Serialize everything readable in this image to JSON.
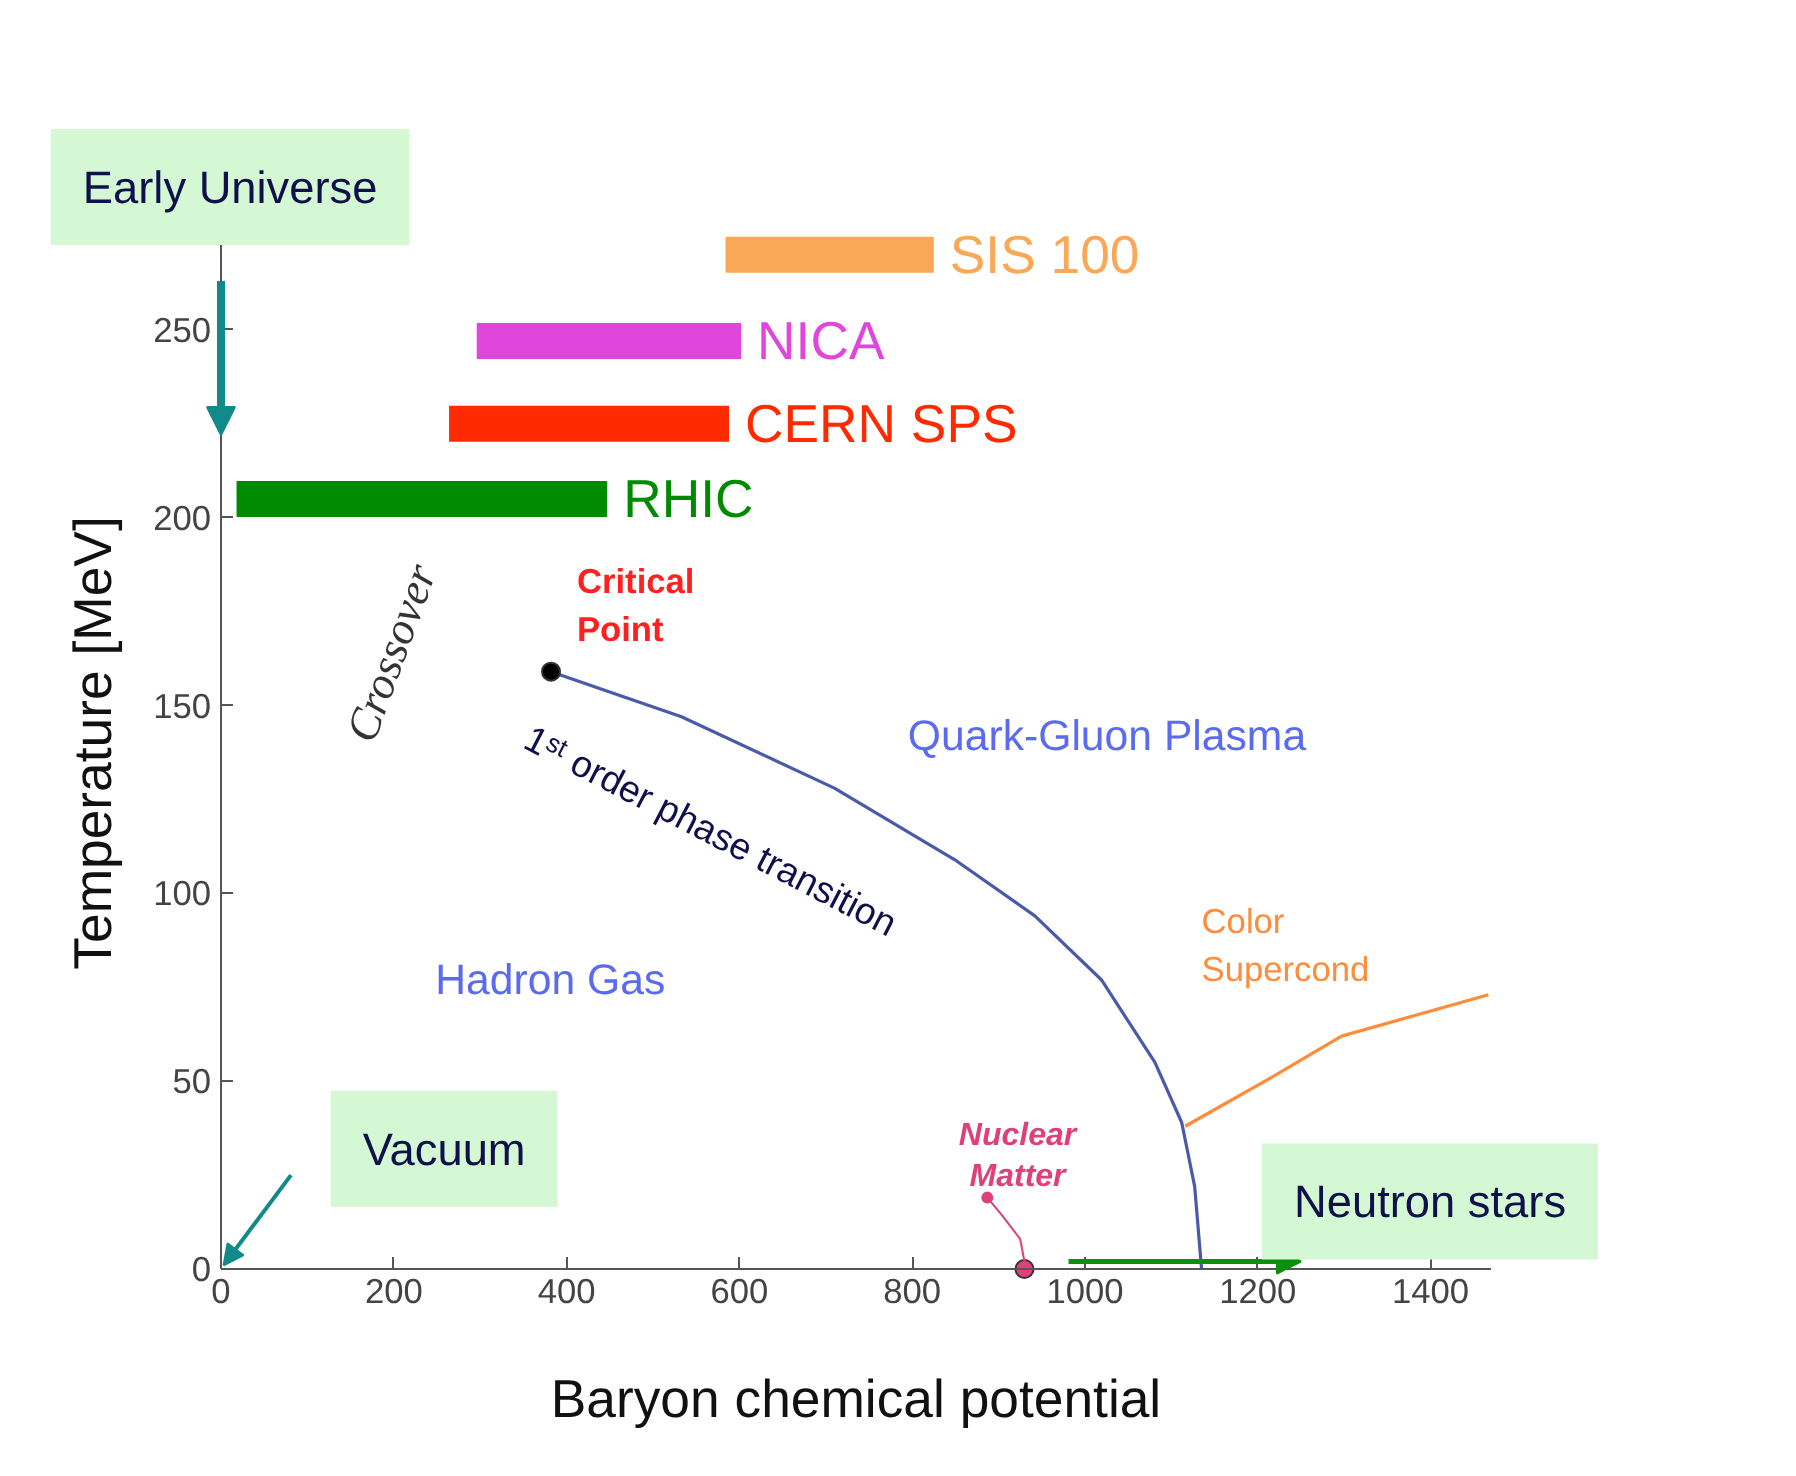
{
  "chart_data": {
    "type": "line",
    "xlabel": "Baryon chemical potential",
    "ylabel": "Temperature [MeV]",
    "xlim": [
      0,
      1470
    ],
    "ylim": [
      0,
      280
    ],
    "xticks": [
      0,
      200,
      400,
      600,
      800,
      1000,
      1200,
      1400
    ],
    "yticks": [
      0,
      50,
      100,
      150,
      200,
      250
    ],
    "series": [
      {
        "name": "SIS 100",
        "color": "#f9a857",
        "x": [
          584,
          825
        ],
        "values": [
          270,
          270
        ]
      },
      {
        "name": "NICA",
        "color": "#e046dc",
        "x": [
          296,
          602
        ],
        "values": [
          247,
          247
        ]
      },
      {
        "name": "CERN SPS",
        "color": "#ff2a00",
        "x": [
          264,
          588
        ],
        "values": [
          225,
          225
        ]
      },
      {
        "name": "RHIC",
        "color": "#008a00",
        "x": [
          18,
          447
        ],
        "values": [
          205,
          205
        ]
      },
      {
        "color": "#4a5aa8",
        "x": [
          382,
          533,
          710,
          849,
          942,
          1019,
          1081,
          1112,
          1127,
          1135
        ],
        "values": [
          159,
          147,
          128,
          109,
          94,
          77,
          55,
          39,
          22,
          0
        ]
      },
      {
        "color": "#ff8c3a",
        "x": [
          1116,
          1216,
          1297,
          1467
        ],
        "values": [
          38,
          51,
          62,
          73
        ]
      },
      {
        "type": "scatter",
        "color": "#000000",
        "x": [
          382
        ],
        "values": [
          159
        ]
      },
      {
        "type": "scatter",
        "color": "#e0407a",
        "x": [
          930
        ],
        "values": [
          0
        ]
      }
    ],
    "annotations": [
      "Early Universe",
      "Vacuum",
      "Neutron stars",
      "Crossover",
      "Critical\nPoint",
      "1ˢᵗ order phase transition",
      "Quark-Gluon Plasma",
      "Hadron Gas",
      "Color\nSupercond",
      "Nuclear\nMatter"
    ]
  }
}
